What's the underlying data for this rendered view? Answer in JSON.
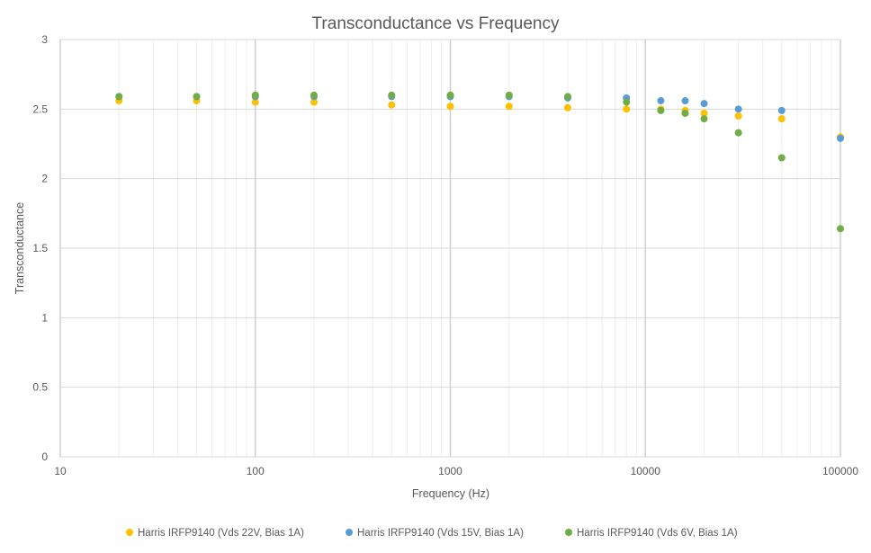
{
  "chart_data": {
    "type": "scatter",
    "title": "Transconductance vs Frequency",
    "xlabel": "Frequency (Hz)",
    "ylabel": "Transconductance",
    "x_scale": "log",
    "xlim": [
      10,
      100000
    ],
    "ylim": [
      0,
      3
    ],
    "x_ticks": [
      "10",
      "100",
      "1000",
      "10000",
      "100000"
    ],
    "y_ticks": [
      "0",
      "0.5",
      "1",
      "1.5",
      "2",
      "2.5",
      "3"
    ],
    "grid": true,
    "legend_position": "bottom",
    "series": [
      {
        "name": "Harris IRFP9140 (Vds 22V, Bias 1A)",
        "color": "#FFC000",
        "points": [
          [
            20,
            2.56
          ],
          [
            50,
            2.56
          ],
          [
            100,
            2.55
          ],
          [
            200,
            2.55
          ],
          [
            500,
            2.53
          ],
          [
            1000,
            2.52
          ],
          [
            2000,
            2.52
          ],
          [
            4000,
            2.51
          ],
          [
            8000,
            2.5
          ],
          [
            12000,
            2.5
          ],
          [
            16000,
            2.49
          ],
          [
            20000,
            2.47
          ],
          [
            30000,
            2.45
          ],
          [
            50000,
            2.43
          ],
          [
            100000,
            2.3
          ]
        ]
      },
      {
        "name": "Harris IRFP9140 (Vds 15V, Bias 1A)",
        "color": "#5B9BD5",
        "points": [
          [
            20,
            2.59
          ],
          [
            50,
            2.59
          ],
          [
            100,
            2.59
          ],
          [
            200,
            2.59
          ],
          [
            500,
            2.59
          ],
          [
            1000,
            2.59
          ],
          [
            2000,
            2.59
          ],
          [
            4000,
            2.58
          ],
          [
            8000,
            2.58
          ],
          [
            12000,
            2.56
          ],
          [
            16000,
            2.56
          ],
          [
            20000,
            2.54
          ],
          [
            30000,
            2.5
          ],
          [
            50000,
            2.49
          ],
          [
            100000,
            2.29
          ]
        ]
      },
      {
        "name": "Harris IRFP9140 (Vds 6V, Bias 1A)",
        "color": "#70AD47",
        "points": [
          [
            20,
            2.59
          ],
          [
            50,
            2.59
          ],
          [
            100,
            2.6
          ],
          [
            200,
            2.6
          ],
          [
            500,
            2.6
          ],
          [
            1000,
            2.6
          ],
          [
            2000,
            2.6
          ],
          [
            4000,
            2.59
          ],
          [
            8000,
            2.55
          ],
          [
            12000,
            2.49
          ],
          [
            16000,
            2.47
          ],
          [
            20000,
            2.43
          ],
          [
            30000,
            2.33
          ],
          [
            50000,
            2.15
          ],
          [
            100000,
            1.64
          ]
        ]
      }
    ]
  }
}
